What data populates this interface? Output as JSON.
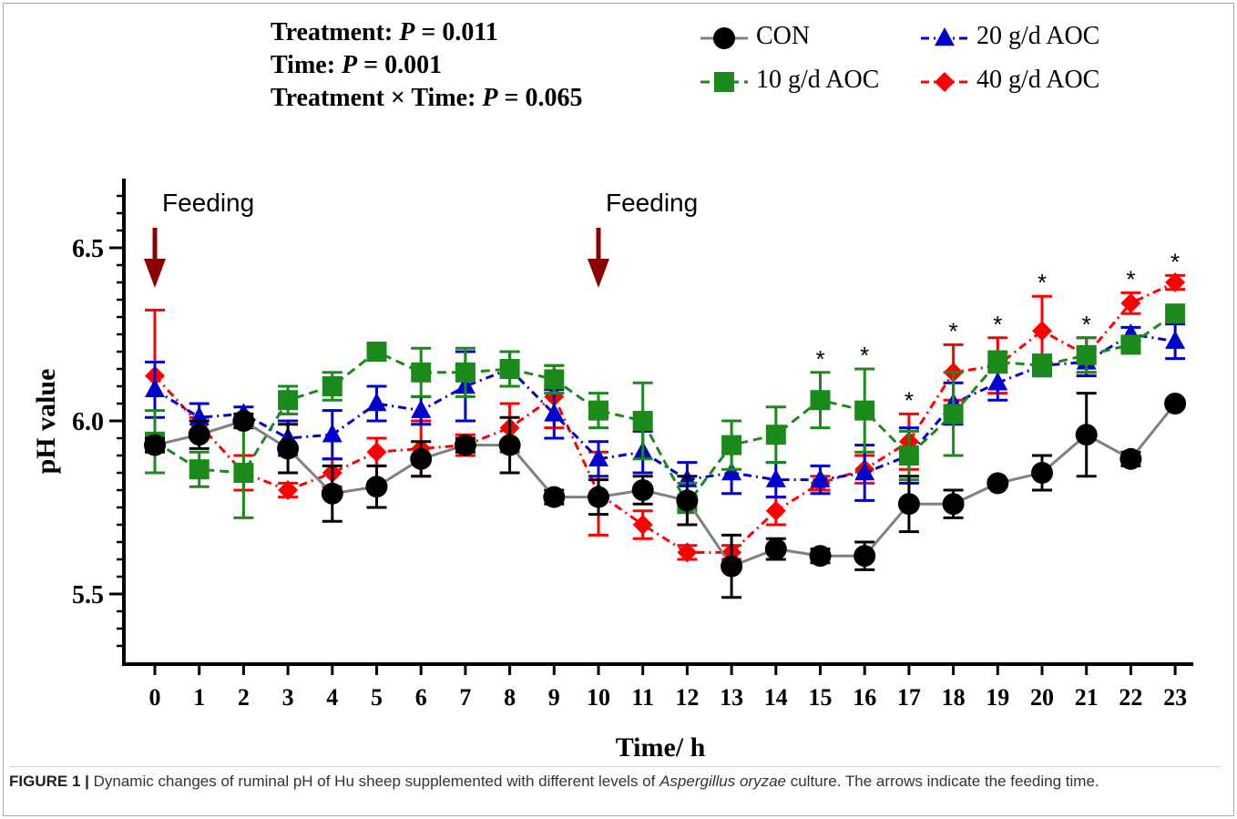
{
  "stats": {
    "treatment_label": "Treatment: ",
    "treatment_p_prefix": "P",
    "treatment_p_value": " = 0.011",
    "time_label": "Time: ",
    "time_p_prefix": "P",
    "time_p_value": " = 0.001",
    "interaction_label": "Treatment × Time: ",
    "interaction_p_prefix": "P",
    "interaction_p_value": " = 0.065"
  },
  "caption": {
    "figure_label": "FIGURE 1 |",
    "text_before": " Dynamic changes of ruminal pH of Hu sheep supplemented with different levels of ",
    "species": "Aspergillus oryzae",
    "text_after": " culture. The arrows indicate the feeding time."
  },
  "chart_data": {
    "type": "line",
    "xlabel": "Time/ h",
    "ylabel": "pH value",
    "x": [
      0,
      1,
      2,
      3,
      4,
      5,
      6,
      7,
      8,
      9,
      10,
      11,
      12,
      13,
      14,
      15,
      16,
      17,
      18,
      19,
      20,
      21,
      22,
      23
    ],
    "ylim": [
      5.3,
      6.7
    ],
    "yticks": [
      "5.5",
      "6.0",
      "6.5"
    ],
    "grid": false,
    "legend_position": "top-right",
    "annotations": [
      {
        "text": "Feeding",
        "x": 0
      },
      {
        "text": "Feeding",
        "x": 10
      }
    ],
    "significance_marker": "*",
    "significant_x": [
      15,
      16,
      17,
      18,
      19,
      20,
      21,
      22,
      23
    ],
    "series": [
      {
        "name": "CON",
        "color": "#000000",
        "line_color": "#808080",
        "marker": "circle",
        "dash": "solid",
        "values": [
          5.93,
          5.96,
          6.0,
          5.92,
          5.79,
          5.81,
          5.89,
          5.93,
          5.93,
          5.78,
          5.78,
          5.8,
          5.77,
          5.58,
          5.63,
          5.61,
          5.61,
          5.76,
          5.76,
          5.82,
          5.85,
          5.96,
          5.89,
          6.05
        ],
        "errors": [
          0.02,
          0.04,
          0.02,
          0.07,
          0.08,
          0.06,
          0.05,
          0.02,
          0.08,
          0.02,
          0.05,
          0.04,
          0.07,
          0.09,
          0.03,
          0.02,
          0.04,
          0.08,
          0.04,
          0.01,
          0.05,
          0.12,
          0.02,
          0.01
        ]
      },
      {
        "name": "10 g/d AOC",
        "color": "#1a8a1a",
        "line_color": "#1a8a1a",
        "marker": "square",
        "dash": "dashed",
        "values": [
          5.94,
          5.86,
          5.85,
          6.06,
          6.1,
          6.2,
          6.14,
          6.14,
          6.15,
          6.12,
          6.03,
          6.0,
          5.76,
          5.93,
          5.96,
          6.06,
          6.03,
          5.9,
          6.02,
          6.17,
          6.16,
          6.19,
          6.22,
          6.31
        ],
        "errors": [
          0.09,
          0.05,
          0.13,
          0.04,
          0.04,
          0.02,
          0.07,
          0.07,
          0.05,
          0.04,
          0.05,
          0.11,
          0.06,
          0.07,
          0.08,
          0.08,
          0.12,
          0.07,
          0.12,
          0.03,
          0.03,
          0.05,
          0.02,
          0.02
        ]
      },
      {
        "name": "20 g/d AOC",
        "color": "#0000cc",
        "line_color": "#0000cc",
        "marker": "triangle",
        "dash": "dash-dot",
        "values": [
          6.09,
          6.01,
          6.02,
          5.95,
          5.96,
          6.05,
          6.03,
          6.1,
          6.15,
          6.02,
          5.89,
          5.91,
          5.83,
          5.85,
          5.83,
          5.83,
          5.85,
          5.9,
          6.05,
          6.11,
          6.16,
          6.17,
          6.25,
          6.23
        ],
        "errors": [
          0.08,
          0.04,
          0.02,
          0.05,
          0.07,
          0.05,
          0.04,
          0.1,
          0.05,
          0.07,
          0.05,
          0.06,
          0.05,
          0.06,
          0.05,
          0.04,
          0.08,
          0.08,
          0.06,
          0.05,
          0.03,
          0.04,
          0.02,
          0.05
        ]
      },
      {
        "name": "40 g/d AOC",
        "color": "#ff0000",
        "line_color": "#ff0000",
        "marker": "diamond",
        "dash": "dash-dot",
        "values": [
          6.13,
          5.99,
          5.85,
          5.8,
          5.85,
          5.91,
          5.92,
          5.93,
          5.98,
          6.07,
          5.79,
          5.7,
          5.62,
          5.62,
          5.74,
          5.82,
          5.86,
          5.94,
          6.14,
          6.16,
          6.26,
          6.19,
          6.34,
          6.4
        ],
        "errors": [
          0.19,
          0.02,
          0.05,
          0.02,
          0.04,
          0.04,
          0.08,
          0.03,
          0.07,
          0.09,
          0.12,
          0.04,
          0.02,
          0.02,
          0.04,
          0.02,
          0.04,
          0.08,
          0.08,
          0.08,
          0.1,
          0.05,
          0.03,
          0.02
        ]
      }
    ]
  }
}
